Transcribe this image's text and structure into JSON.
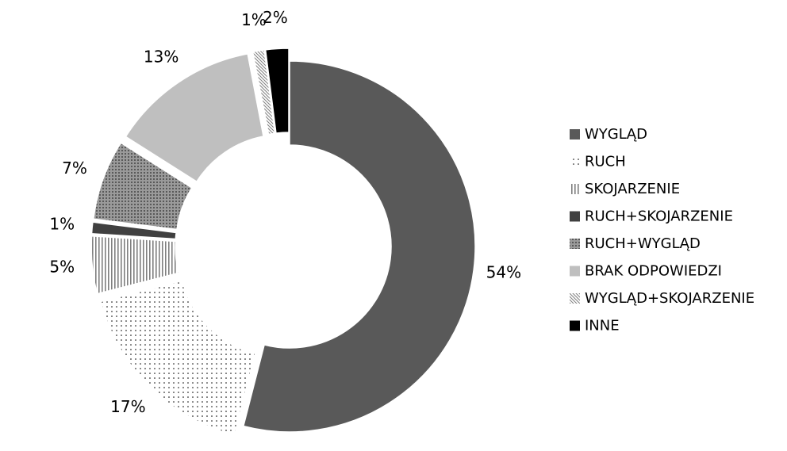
{
  "chart_data": {
    "type": "donut",
    "categories": [
      "WYGLĄD",
      "RUCH",
      "SKOJARZENIE",
      "RUCH+SKOJARZENIE",
      "RUCH+WYGLĄD",
      "BRAK ODPOWIEDZI",
      "WYGLĄD+SKOJARZENIE",
      "INNE"
    ],
    "values": [
      54,
      17,
      5,
      1,
      7,
      13,
      1,
      2
    ],
    "value_labels": [
      "54%",
      "17%",
      "5%",
      "1%",
      "7%",
      "13%",
      "1%",
      "2%"
    ],
    "colors": [
      "#595959",
      "#000000",
      "#7f7f7f",
      "#404040",
      "#7f7f7f",
      "#bfbfbf",
      "#7f7f7f",
      "#000000"
    ],
    "patterns": [
      "solid",
      "dots",
      "vlines",
      "solid",
      "dense-dots",
      "solid",
      "diagonal",
      "solid"
    ],
    "legend": "right"
  }
}
